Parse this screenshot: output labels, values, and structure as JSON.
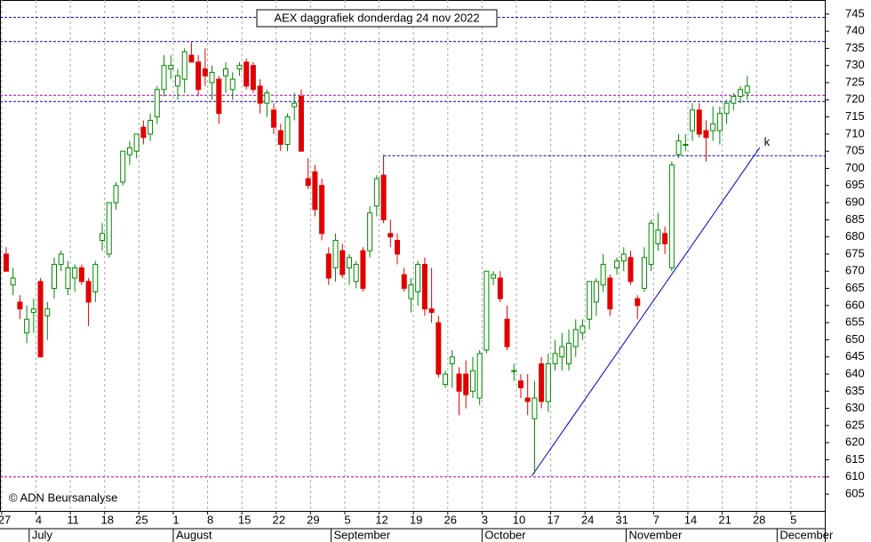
{
  "chart_data": {
    "type": "candlestick",
    "title": "AEX daggrafiek donderdag 24 nov 2022",
    "copyright": "© ADN Beursanalyse",
    "up_color": "#008800",
    "down_color": "#e00000",
    "open": [
      675,
      666,
      661,
      652,
      658,
      667,
      657,
      665,
      672,
      665,
      668,
      671,
      667,
      664,
      679,
      675,
      690,
      696,
      704,
      705,
      712,
      710,
      715,
      723,
      729,
      724,
      726,
      733,
      731,
      729,
      725,
      726,
      727,
      723,
      729,
      731,
      730,
      724,
      719,
      717,
      711,
      707,
      718,
      721,
      697,
      699,
      695,
      675,
      671,
      676,
      671,
      667,
      676,
      676,
      689,
      698,
      681,
      679,
      669,
      662,
      664,
      672,
      659,
      655,
      637,
      643,
      640,
      640,
      635,
      633,
      647,
      668,
      668,
      656,
      641,
      638,
      633,
      627,
      643,
      632,
      643,
      645,
      643,
      648,
      652,
      656,
      661,
      666,
      668,
      671,
      673,
      674,
      662,
      665,
      672,
      678,
      681,
      671,
      704,
      707,
      711,
      717,
      711,
      711,
      711,
      716,
      719,
      721,
      722
    ],
    "high": [
      677,
      671,
      663,
      660,
      662,
      668,
      661,
      674,
      676,
      673,
      672,
      672,
      668,
      673,
      684,
      690,
      696,
      705,
      708,
      710,
      714,
      716,
      724,
      733,
      733,
      729,
      735,
      737,
      733,
      735,
      730,
      727,
      731,
      728,
      731,
      732,
      731,
      726,
      723,
      719,
      713,
      716,
      722,
      723,
      703,
      701,
      697,
      677,
      681,
      678,
      675,
      673,
      677,
      689,
      698,
      704,
      685,
      681,
      671,
      668,
      673,
      674,
      671,
      657,
      641,
      647,
      642,
      644,
      645,
      647,
      670,
      670,
      670,
      660,
      643,
      640,
      640,
      638,
      645,
      646,
      650,
      652,
      653,
      656,
      656,
      667,
      668,
      675,
      669,
      674,
      677,
      676,
      663,
      677,
      685,
      687,
      683,
      702,
      710,
      710,
      719,
      719,
      714,
      718,
      718,
      720,
      722,
      724,
      727
    ],
    "low": [
      670,
      663,
      656,
      649,
      652,
      645,
      650,
      662,
      670,
      663,
      664,
      666,
      654,
      661,
      676,
      674,
      688,
      695,
      701,
      703,
      707,
      708,
      713,
      721,
      726,
      720,
      722,
      731,
      721,
      724,
      720,
      713,
      722,
      720,
      727,
      723,
      722,
      716,
      715,
      710,
      705,
      705,
      714,
      705,
      694,
      686,
      679,
      666,
      667,
      668,
      666,
      665,
      664,
      674,
      686,
      684,
      677,
      672,
      664,
      658,
      660,
      657,
      655,
      639,
      636,
      636,
      628,
      630,
      633,
      631,
      646,
      666,
      661,
      647,
      638,
      633,
      628,
      611,
      630,
      629,
      641,
      641,
      641,
      645,
      650,
      653,
      657,
      664,
      657,
      669,
      670,
      666,
      656,
      664,
      670,
      676,
      675,
      670,
      703,
      705,
      708,
      709,
      702,
      708,
      707,
      713,
      717,
      719,
      720
    ],
    "close": [
      670,
      668,
      659,
      656,
      659,
      645,
      659,
      672,
      675,
      671,
      671,
      667,
      661,
      672,
      681,
      690,
      695,
      705,
      706,
      710,
      709,
      714,
      723,
      730,
      730,
      727,
      734,
      731,
      723,
      727,
      728,
      716,
      729,
      726,
      730,
      724,
      723,
      719,
      722,
      712,
      707,
      715,
      719,
      705,
      695,
      688,
      681,
      668,
      679,
      669,
      674,
      672,
      665,
      687,
      697,
      685,
      680,
      675,
      665,
      666,
      672,
      659,
      658,
      640,
      640,
      645,
      635,
      634,
      641,
      646,
      670,
      669,
      662,
      648,
      641,
      636,
      632,
      633,
      632,
      643,
      646,
      648,
      649,
      653,
      654,
      667,
      667,
      672,
      659,
      673,
      675,
      667,
      660,
      674,
      684,
      682,
      678,
      701,
      708,
      707,
      717,
      710,
      709,
      713,
      716,
      719,
      721,
      723,
      724
    ],
    "xlim": [
      -0.9,
      119.3
    ],
    "ylim": [
      600.1,
      749.1
    ],
    "yticks": [
      605,
      610,
      615,
      620,
      625,
      630,
      635,
      640,
      645,
      650,
      655,
      660,
      665,
      670,
      675,
      680,
      685,
      690,
      695,
      700,
      705,
      710,
      715,
      720,
      725,
      730,
      735,
      740,
      745
    ],
    "xticks": [
      {
        "value": 0,
        "label": "27"
      },
      {
        "value": 5,
        "label": "4"
      },
      {
        "value": 10,
        "label": "11"
      },
      {
        "value": 15,
        "label": "18"
      },
      {
        "value": 20,
        "label": "25"
      },
      {
        "value": 25,
        "label": "1"
      },
      {
        "value": 30,
        "label": "8"
      },
      {
        "value": 35,
        "label": "15"
      },
      {
        "value": 40,
        "label": "22"
      },
      {
        "value": 45,
        "label": "29"
      },
      {
        "value": 50,
        "label": "5"
      },
      {
        "value": 55,
        "label": "12"
      },
      {
        "value": 60,
        "label": "19"
      },
      {
        "value": 65,
        "label": "26"
      },
      {
        "value": 70,
        "label": "3"
      },
      {
        "value": 75,
        "label": "10"
      },
      {
        "value": 80,
        "label": "17"
      },
      {
        "value": 85,
        "label": "24"
      },
      {
        "value": 90,
        "label": "31"
      },
      {
        "value": 95,
        "label": "7"
      },
      {
        "value": 100,
        "label": "14"
      },
      {
        "value": 105,
        "label": "21"
      },
      {
        "value": 110,
        "label": "28"
      },
      {
        "value": 115,
        "label": "5"
      }
    ],
    "months": [
      {
        "value": 4,
        "label": "July"
      },
      {
        "value": 25,
        "label": "August"
      },
      {
        "value": 48,
        "label": "September"
      },
      {
        "value": 70,
        "label": "October"
      },
      {
        "value": 91,
        "label": "November"
      },
      {
        "value": 113,
        "label": "December"
      }
    ],
    "grid": true,
    "hlines": [
      {
        "value": 744,
        "color": "#0000aa"
      },
      {
        "value": 737,
        "color": "#0000aa"
      },
      {
        "value": 721.3,
        "color": "#aa00aa"
      },
      {
        "value": 719.5,
        "color": "#0000aa"
      },
      {
        "value": 703.7,
        "color": "#0000aa",
        "start": 55
      },
      {
        "value": 610,
        "color": "#aa00aa"
      }
    ],
    "trendline": {
      "x": [
        76.6,
        109.8
      ],
      "y": [
        610.3,
        706
      ],
      "color": "#0000cc",
      "label": "k"
    }
  }
}
